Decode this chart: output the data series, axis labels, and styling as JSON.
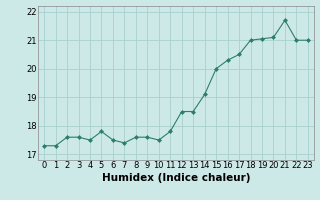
{
  "x": [
    0,
    1,
    2,
    3,
    4,
    5,
    6,
    7,
    8,
    9,
    10,
    11,
    12,
    13,
    14,
    15,
    16,
    17,
    18,
    19,
    20,
    21,
    22,
    23
  ],
  "y": [
    17.3,
    17.3,
    17.6,
    17.6,
    17.5,
    17.8,
    17.5,
    17.4,
    17.6,
    17.6,
    17.5,
    17.8,
    18.5,
    18.5,
    19.1,
    20.0,
    20.3,
    20.5,
    21.0,
    21.05,
    21.1,
    21.7,
    21.0,
    21.0
  ],
  "xlabel": "Humidex (Indice chaleur)",
  "ylim": [
    16.8,
    22.2
  ],
  "xlim": [
    -0.5,
    23.5
  ],
  "yticks": [
    17,
    18,
    19,
    20,
    21,
    22
  ],
  "xticks": [
    0,
    1,
    2,
    3,
    4,
    5,
    6,
    7,
    8,
    9,
    10,
    11,
    12,
    13,
    14,
    15,
    16,
    17,
    18,
    19,
    20,
    21,
    22,
    23
  ],
  "line_color": "#2e7d6e",
  "marker": "D",
  "marker_size": 2.0,
  "bg_color": "#cce9e8",
  "grid_color": "#a8d0ce",
  "tick_label_fontsize": 6,
  "xlabel_fontsize": 7.5
}
